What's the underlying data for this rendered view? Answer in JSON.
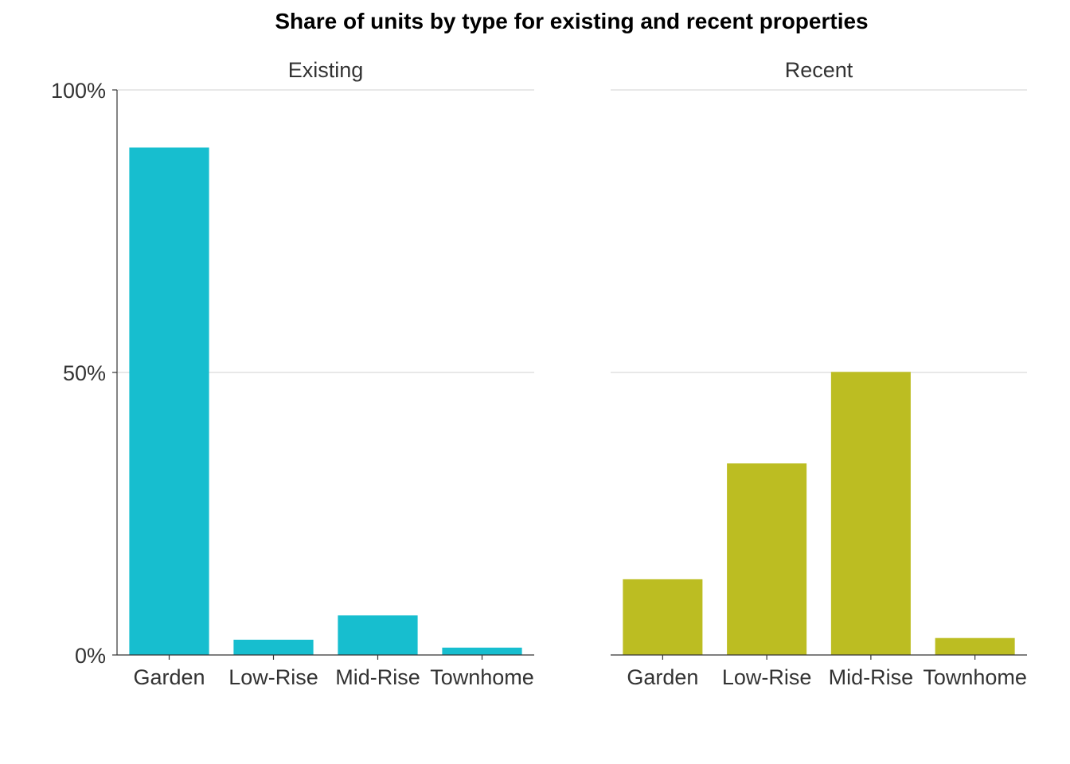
{
  "chart_data": {
    "type": "bar",
    "title": "Share of units by type for existing and recent properties",
    "xlabel": "",
    "ylabel": "",
    "ylim": [
      0,
      100
    ],
    "y_ticks": [
      {
        "value": 0,
        "label": "0%"
      },
      {
        "value": 50,
        "label": "50%"
      },
      {
        "value": 100,
        "label": "100%"
      }
    ],
    "grid": "horizontal major lines only",
    "categories": [
      "Garden",
      "Low-Rise",
      "Mid-Rise",
      "Townhome"
    ],
    "panels": [
      {
        "name": "Existing",
        "color": "#17BECF",
        "values": [
          89.8,
          2.7,
          7.0,
          1.3
        ]
      },
      {
        "name": "Recent",
        "color": "#BCBD22",
        "values": [
          13.4,
          33.9,
          50.1,
          3.0
        ]
      }
    ]
  }
}
